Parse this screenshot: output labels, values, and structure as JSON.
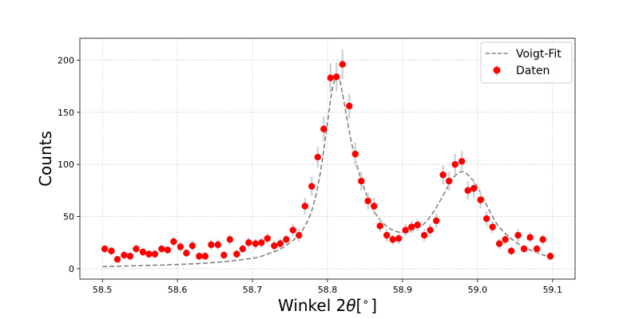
{
  "chart_data": {
    "type": "scatter",
    "title": "",
    "xlabel": "Winkel 2θ[∘]",
    "xlabel_parts": {
      "prefix": "Winkel 2",
      "theta": "θ",
      "open": "[",
      "degree": "∘",
      "close": "]"
    },
    "ylabel": "Counts",
    "xlim": [
      58.47,
      59.13
    ],
    "ylim": [
      -10,
      221
    ],
    "xticks": [
      "58.5",
      "58.6",
      "58.7",
      "58.8",
      "58.9",
      "59.0",
      "59.1"
    ],
    "yticks": [
      "0",
      "50",
      "100",
      "150",
      "200"
    ],
    "grid": true,
    "legend_position": "top-right",
    "series": [
      {
        "name": "Voigt-Fit",
        "kind": "line",
        "color": "#808080",
        "style": "dashed",
        "x": [
          58.5,
          58.55,
          58.6,
          58.65,
          58.7,
          58.72,
          58.74,
          58.76,
          58.77,
          58.78,
          58.79,
          58.8,
          58.805,
          58.81,
          58.815,
          58.82,
          58.83,
          58.84,
          58.85,
          58.86,
          58.87,
          58.88,
          58.89,
          58.9,
          58.91,
          58.92,
          58.93,
          58.94,
          58.95,
          58.96,
          58.97,
          58.98,
          58.99,
          59.0,
          59.01,
          59.02,
          59.03,
          59.05,
          59.07,
          59.1
        ],
        "y": [
          2,
          3,
          4,
          6,
          10,
          14,
          20,
          31,
          41,
          58,
          90,
          140,
          166,
          182,
          183,
          168,
          128,
          97,
          75,
          58,
          47,
          40,
          36,
          35,
          36,
          39,
          44,
          53,
          65,
          78,
          89,
          93,
          88,
          78,
          64,
          50,
          39,
          26,
          18,
          10
        ]
      },
      {
        "name": "Daten",
        "kind": "scatter",
        "color": "#ff0000",
        "errorbar_color": "#d3d3d3",
        "x": [
          58.503,
          58.512,
          58.52,
          58.529,
          58.537,
          58.545,
          58.554,
          58.562,
          58.57,
          58.579,
          58.587,
          58.595,
          58.604,
          58.612,
          58.62,
          58.629,
          58.637,
          58.645,
          58.654,
          58.662,
          58.67,
          58.679,
          58.687,
          58.695,
          58.704,
          58.712,
          58.72,
          58.729,
          58.737,
          58.745,
          58.754,
          58.762,
          58.77,
          58.779,
          58.787,
          58.795,
          58.804,
          58.812,
          58.82,
          58.829,
          58.837,
          58.845,
          58.854,
          58.862,
          58.87,
          58.879,
          58.887,
          58.895,
          58.904,
          58.912,
          58.92,
          58.929,
          58.937,
          58.945,
          58.954,
          58.962,
          58.97,
          58.979,
          58.987,
          58.995,
          59.004,
          59.012,
          59.02,
          59.029,
          59.037,
          59.045,
          59.054,
          59.062,
          59.07,
          59.079,
          59.087,
          59.097
        ],
        "y": [
          19,
          17,
          9,
          13,
          12,
          19,
          16,
          14,
          14,
          19,
          18,
          26,
          21,
          15,
          22,
          12,
          12,
          23,
          23,
          13,
          28,
          14,
          19,
          25,
          24,
          25,
          29,
          22,
          24,
          28,
          37,
          32,
          60,
          79,
          107,
          134,
          183,
          184,
          196,
          156,
          110,
          84,
          65,
          60,
          41,
          32,
          28,
          29,
          37,
          40,
          42,
          32,
          37,
          46,
          90,
          84,
          100,
          103,
          75,
          77,
          66,
          48,
          40,
          24,
          28,
          17,
          32,
          19,
          30,
          19,
          28,
          12
        ],
        "yerr": [
          4,
          4,
          3,
          4,
          4,
          4,
          4,
          4,
          4,
          4,
          4,
          5,
          5,
          4,
          5,
          4,
          4,
          5,
          5,
          4,
          5,
          4,
          4,
          5,
          5,
          5,
          5,
          5,
          5,
          5,
          6,
          6,
          8,
          9,
          10,
          12,
          14,
          14,
          14,
          12,
          11,
          9,
          8,
          8,
          6,
          6,
          5,
          5,
          6,
          6,
          6,
          6,
          6,
          7,
          9,
          9,
          10,
          10,
          9,
          9,
          8,
          7,
          6,
          5,
          5,
          4,
          6,
          4,
          5,
          4,
          5,
          4
        ]
      }
    ]
  }
}
